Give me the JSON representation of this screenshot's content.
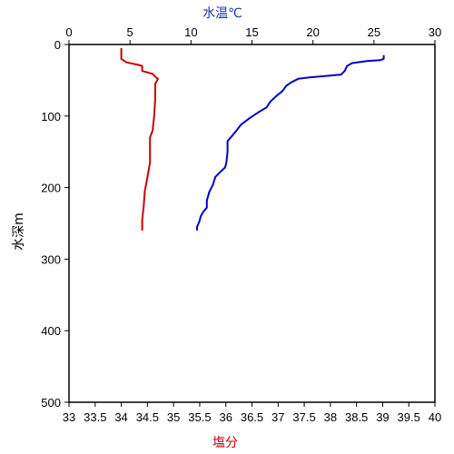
{
  "chart_data": {
    "type": "line",
    "top_axis": {
      "label": "水温℃",
      "label_color": "#1f2fbf",
      "range": [
        0,
        30
      ],
      "ticks": [
        "0",
        "5",
        "10",
        "15",
        "20",
        "25",
        "30"
      ]
    },
    "bottom_axis": {
      "label": "塩分",
      "label_color": "#cc0000",
      "range": [
        33,
        40
      ],
      "ticks": [
        "33",
        "33.5",
        "34",
        "34.5",
        "35",
        "35.5",
        "36",
        "36.5",
        "37",
        "37.5",
        "38",
        "38.5",
        "39",
        "39.5",
        "40"
      ]
    },
    "y_axis": {
      "label": "水深m",
      "range": [
        0,
        500
      ],
      "inverted": true,
      "ticks": [
        "0",
        "100",
        "200",
        "300",
        "400",
        "500"
      ]
    },
    "grid": false,
    "series": [
      {
        "axis": "top",
        "color": "#0000cc",
        "points": [
          [
            25.8,
            15
          ],
          [
            25.8,
            20
          ],
          [
            25.5,
            22
          ],
          [
            24.5,
            23
          ],
          [
            23.2,
            26
          ],
          [
            22.8,
            30
          ],
          [
            22.6,
            37
          ],
          [
            22.3,
            42
          ],
          [
            21.0,
            44
          ],
          [
            19.7,
            46
          ],
          [
            18.8,
            48
          ],
          [
            18.2,
            53
          ],
          [
            17.8,
            58
          ],
          [
            17.5,
            65
          ],
          [
            17.0,
            72
          ],
          [
            16.5,
            80
          ],
          [
            16.2,
            88
          ],
          [
            15.5,
            95
          ],
          [
            14.8,
            103
          ],
          [
            14.1,
            112
          ],
          [
            13.7,
            121
          ],
          [
            13.3,
            129
          ],
          [
            13.0,
            135
          ],
          [
            13.0,
            150
          ],
          [
            12.9,
            165
          ],
          [
            12.8,
            172
          ],
          [
            12.4,
            178
          ],
          [
            12.0,
            185
          ],
          [
            11.8,
            196
          ],
          [
            11.5,
            206
          ],
          [
            11.3,
            218
          ],
          [
            11.3,
            228
          ],
          [
            11.0,
            234
          ],
          [
            10.8,
            240
          ],
          [
            10.7,
            247
          ],
          [
            10.5,
            255
          ],
          [
            10.5,
            260
          ]
        ]
      },
      {
        "axis": "bottom",
        "color": "#cc0000",
        "points": [
          [
            34.0,
            5
          ],
          [
            34.0,
            20
          ],
          [
            34.1,
            25
          ],
          [
            34.3,
            28
          ],
          [
            34.4,
            30
          ],
          [
            34.4,
            37
          ],
          [
            34.6,
            41
          ],
          [
            34.65,
            45
          ],
          [
            34.7,
            48
          ],
          [
            34.65,
            55
          ],
          [
            34.65,
            75
          ],
          [
            34.63,
            100
          ],
          [
            34.6,
            120
          ],
          [
            34.55,
            130
          ],
          [
            34.55,
            165
          ],
          [
            34.5,
            185
          ],
          [
            34.45,
            205
          ],
          [
            34.43,
            225
          ],
          [
            34.4,
            245
          ],
          [
            34.4,
            260
          ]
        ]
      }
    ]
  }
}
